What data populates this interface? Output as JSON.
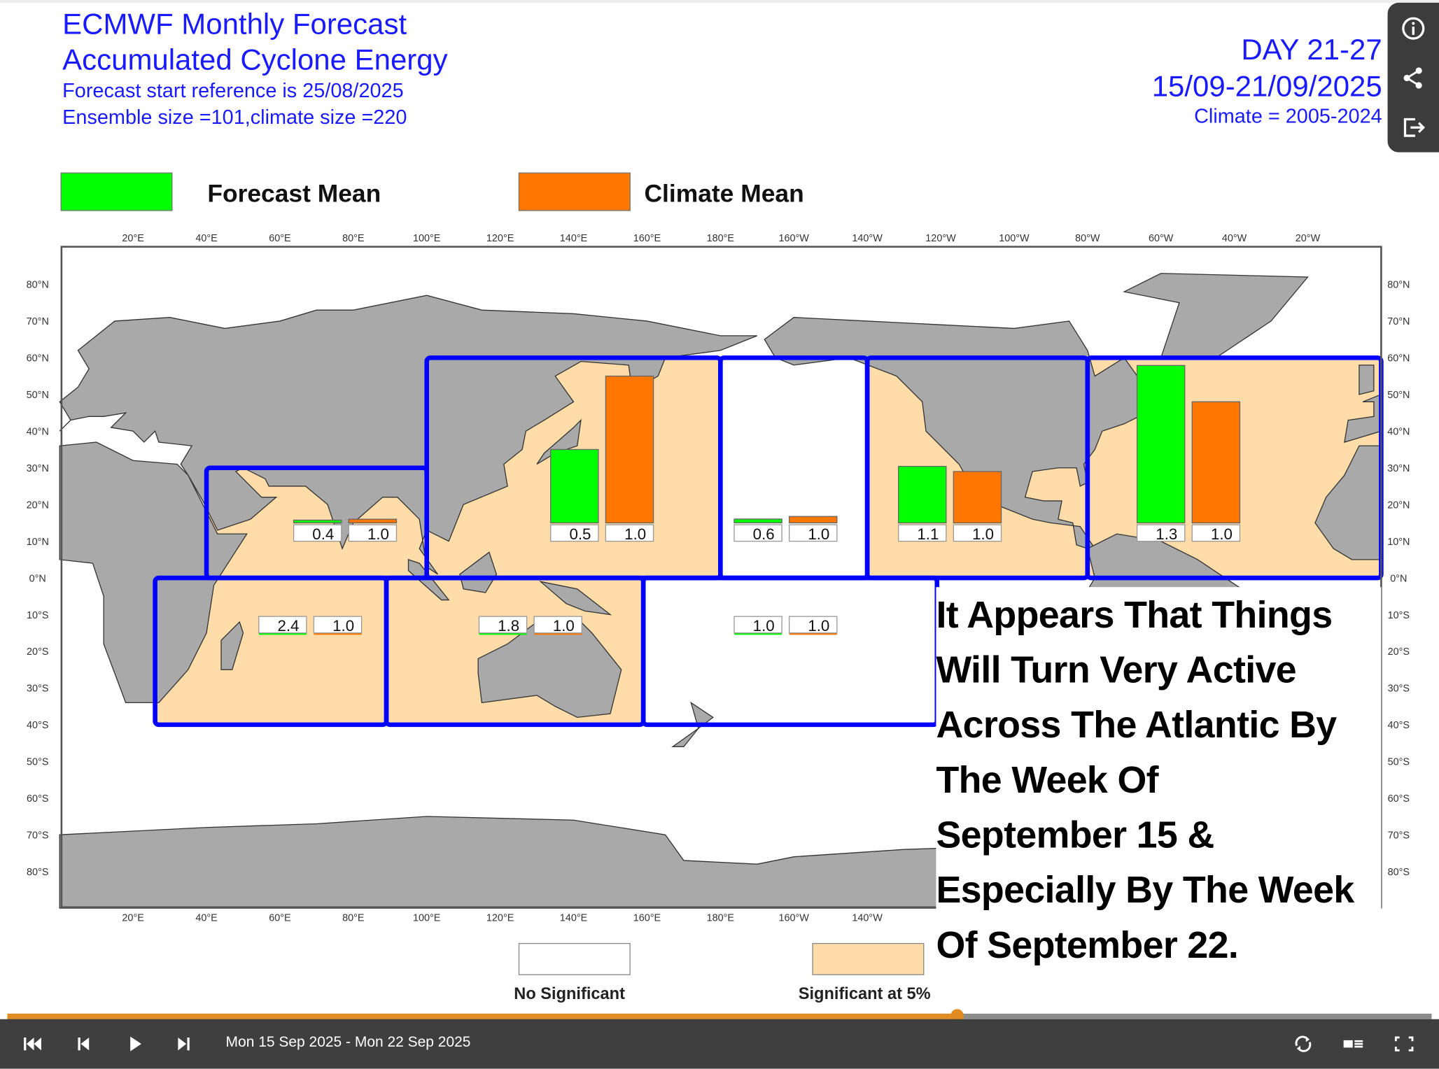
{
  "header": {
    "title_line1": "ECMWF Monthly Forecast",
    "title_line2": "Accumulated Cyclone Energy",
    "forecast_start": "Forecast start reference is 25/08/2025",
    "ensemble": "Ensemble size =101,climate size =220",
    "day_range": "DAY 21-27",
    "date_range": "15/09-21/09/2025",
    "climate_period": "Climate = 2005-2024"
  },
  "legend": {
    "forecast_label": "Forecast Mean",
    "forecast_color": "#00ff00",
    "climate_label": "Climate Mean",
    "climate_color": "#ff7700"
  },
  "map": {
    "lon_ticks": [
      "20°E",
      "40°E",
      "60°E",
      "80°E",
      "100°E",
      "120°E",
      "140°E",
      "160°E",
      "180°E",
      "160°W",
      "140°W",
      "120°W",
      "100°W",
      "80°W",
      "60°W",
      "40°W",
      "20°W"
    ],
    "lat_ticks": [
      "80°N",
      "70°N",
      "60°N",
      "50°N",
      "40°N",
      "30°N",
      "20°N",
      "10°N",
      "0°N",
      "10°S",
      "20°S",
      "30°S",
      "40°S",
      "50°S",
      "60°S",
      "70°S",
      "80°S"
    ],
    "land_color": "#a9a9a9",
    "significant_color": "#ffdca8",
    "border_color": "#0000ff",
    "regions": [
      {
        "name": "north-indian",
        "forecast": "0.4",
        "climate": "1.0",
        "significant": true
      },
      {
        "name": "west-pacific",
        "forecast": "0.5",
        "climate": "1.0",
        "significant": true
      },
      {
        "name": "central-pacific",
        "forecast": "0.6",
        "climate": "1.0",
        "significant": false
      },
      {
        "name": "east-pacific",
        "forecast": "1.1",
        "climate": "1.0",
        "significant": true
      },
      {
        "name": "atlantic",
        "forecast": "1.3",
        "climate": "1.0",
        "significant": true
      },
      {
        "name": "south-indian",
        "forecast": "2.4",
        "climate": "1.0",
        "significant": true
      },
      {
        "name": "australia",
        "forecast": "1.8",
        "climate": "1.0",
        "significant": true
      },
      {
        "name": "south-pacific",
        "forecast": "1.0",
        "climate": "1.0",
        "significant": false
      }
    ]
  },
  "significance_legend": {
    "none_label": "No Significant",
    "sig_label": "Significant at 5%"
  },
  "annotation": {
    "lines": [
      "It Appears That Things",
      "Will Turn Very Active",
      "Across The Atlantic By",
      "The Week Of",
      "September 15 &",
      "Especially By The Week",
      "Of September 22."
    ]
  },
  "player": {
    "range_label": "Mon 15 Sep 2025 - Mon 22 Sep 2025",
    "progress_percent": 66.7,
    "accent_color": "#e08c22"
  },
  "side_panel": {
    "icons": [
      "info-icon",
      "share-icon",
      "export-icon"
    ]
  }
}
